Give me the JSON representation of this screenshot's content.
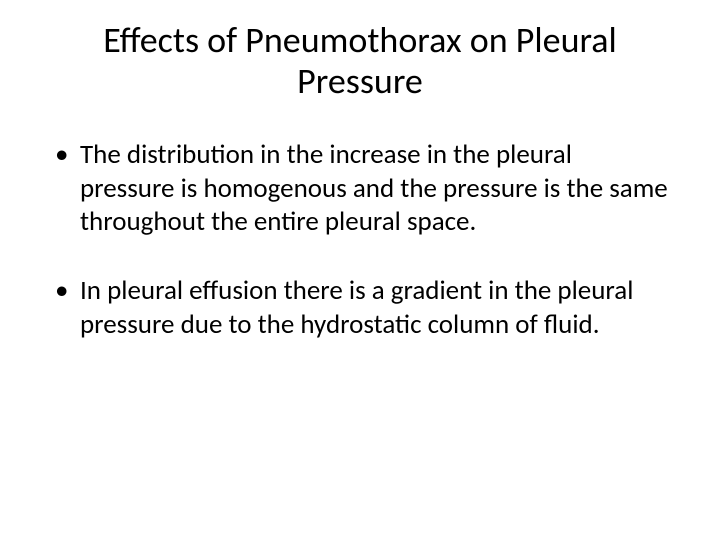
{
  "slide": {
    "title": "Effects of Pneumothorax on Pleural Pressure",
    "bullets": [
      "The distribution in the increase in the pleural pressure is homogenous and the pressure is the same throughout the entire pleural space.",
      "In pleural effusion there is a gradient in the pleural pressure due to the hydrostatic column of fluid."
    ],
    "background_color": "#ffffff",
    "text_color": "#000000",
    "title_fontsize": 36,
    "bullet_fontsize": 27
  }
}
